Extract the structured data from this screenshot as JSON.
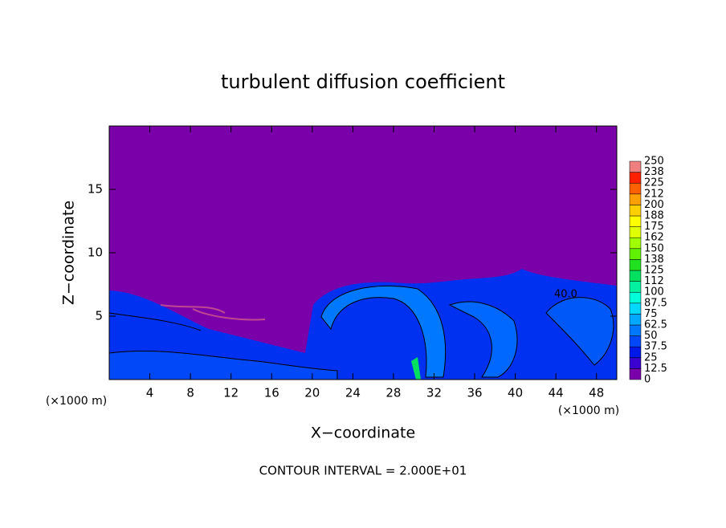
{
  "chart_data": {
    "type": "contour",
    "title": "turbulent diffusion coefficient",
    "x_label": "X−coordinate",
    "y_label": "Z−coordinate",
    "x_unit": "(×1000 m)",
    "x_unit_right": "(×1000 m)",
    "footer": "CONTOUR INTERVAL = 2.000E+01",
    "contour_label": "40.0",
    "xlim": [
      0,
      50
    ],
    "xticks": [
      4,
      8,
      12,
      16,
      20,
      24,
      28,
      32,
      36,
      40,
      44,
      48
    ],
    "ylim": [
      0,
      20
    ],
    "yticks": [
      5,
      10,
      15
    ],
    "levels": [
      0,
      12.5,
      25,
      37.5,
      50,
      62.5,
      75,
      87.5,
      100,
      112,
      125,
      138,
      150,
      162,
      175,
      188,
      200,
      212,
      225,
      238,
      250
    ],
    "colors": [
      "#7a00aa",
      "#3a00d0",
      "#0018e8",
      "#0048f8",
      "#0078ff",
      "#00a8ff",
      "#00d8ff",
      "#00ffd8",
      "#00f0a0",
      "#00e060",
      "#20e020",
      "#60f000",
      "#a0ff00",
      "#e0ff00",
      "#ffff00",
      "#ffd000",
      "#ffa000",
      "#ff6000",
      "#ff2000",
      "#f08080"
    ]
  }
}
